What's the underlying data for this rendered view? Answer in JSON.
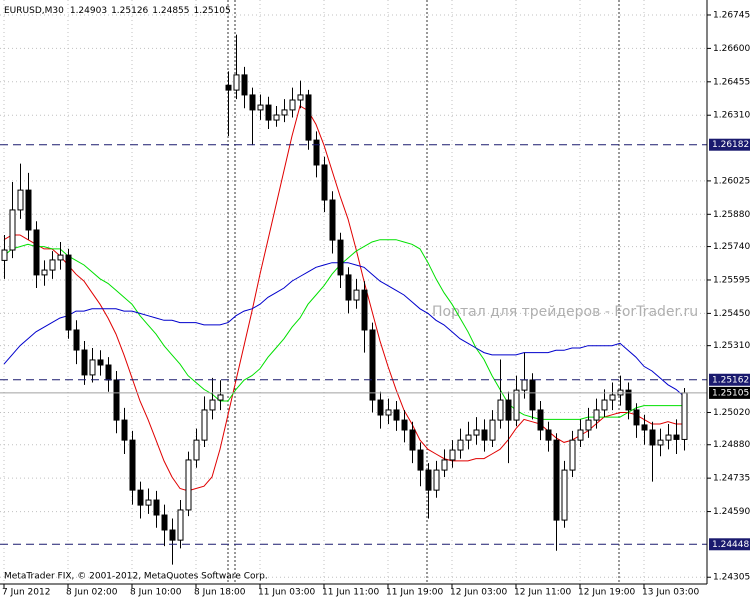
{
  "chart_data": {
    "type": "candlestick",
    "title": "EURUSD,M30",
    "watermark": "Портал для трейдеров - ForTrader.ru",
    "footer": "MetaTrader FIX, © 2001-2012, MetaQuotes Software Corp.",
    "candles": {
      "open": [
        1.2568,
        1.25725,
        1.25899,
        1.25985,
        1.25812,
        1.25617,
        1.25638,
        1.25682,
        1.25703,
        1.25378,
        1.25291,
        1.25183,
        1.25248,
        1.25226,
        1.25161,
        1.24987,
        1.249,
        1.24683,
        1.24618,
        1.2464,
        1.24575,
        1.2451,
        1.24466,
        1.24597,
        1.24814,
        1.249,
        1.25031,
        1.25074,
        1.2644,
        1.26419,
        1.26485,
        1.26398,
        1.26333,
        1.26354,
        1.26289,
        1.26311,
        1.26333,
        1.26376,
        1.26398,
        1.26202,
        1.26094,
        1.25942,
        1.25768,
        1.25617,
        1.25508,
        1.25551,
        1.25378,
        1.25074,
        1.25009,
        1.25031,
        1.24987,
        1.24944,
        1.24857,
        1.2477,
        1.24683,
        1.2477,
        1.24814,
        1.24857,
        1.249,
        1.24922,
        1.24944,
        1.249,
        1.24987,
        1.25074,
        1.24987,
        1.25117,
        1.25161,
        1.25031,
        1.24944,
        1.249,
        1.24553,
        1.2477,
        1.249,
        1.24944,
        1.24987,
        1.25031,
        1.25074,
        1.25096,
        1.25117,
        1.25031,
        1.24966,
        1.24944,
        1.24879,
        1.249,
        1.24922,
        1.24903
      ],
      "high": [
        1.2579,
        1.2602,
        1.261,
        1.2606,
        1.2585,
        1.2568,
        1.2572,
        1.2576,
        1.2573,
        1.2542,
        1.2533,
        1.253,
        1.2529,
        1.2526,
        1.252,
        1.2504,
        1.2494,
        1.2472,
        1.2469,
        1.2468,
        1.2462,
        1.2456,
        1.2464,
        1.2485,
        1.2495,
        1.2509,
        1.2517,
        1.2516,
        1.265,
        1.2666,
        1.2652,
        1.2643,
        1.264,
        1.2639,
        1.2635,
        1.2638,
        1.2643,
        1.2646,
        1.2642,
        1.2624,
        1.2613,
        1.2598,
        1.258,
        1.2565,
        1.256,
        1.2559,
        1.2541,
        1.2511,
        1.2508,
        1.2507,
        1.2503,
        1.2498,
        1.2489,
        1.248,
        1.2481,
        1.2486,
        1.249,
        1.2495,
        1.2498,
        1.25,
        1.2499,
        1.2503,
        1.2525,
        1.2511,
        1.2518,
        1.2528,
        1.2519,
        1.2507,
        1.2498,
        1.2493,
        1.2481,
        1.2494,
        1.2499,
        1.2504,
        1.2508,
        1.2512,
        1.2515,
        1.2518,
        1.2515,
        1.2506,
        1.2501,
        1.2498,
        1.2495,
        1.2497,
        1.2499,
        1.25126
      ],
      "low": [
        1.256,
        1.2569,
        1.2586,
        1.2577,
        1.2556,
        1.2557,
        1.256,
        1.2564,
        1.2534,
        1.2523,
        1.2514,
        1.2515,
        1.2518,
        1.2511,
        1.2493,
        1.2484,
        1.2462,
        1.2456,
        1.2458,
        1.2452,
        1.2444,
        1.2436,
        1.2443,
        1.2457,
        1.2478,
        1.2487,
        1.2499,
        1.2503,
        1.2622,
        1.2638,
        1.2634,
        1.2618,
        1.2629,
        1.2625,
        1.2626,
        1.2628,
        1.263,
        1.2634,
        1.2616,
        1.2604,
        1.2589,
        1.2571,
        1.2556,
        1.2545,
        1.2547,
        1.2528,
        1.2502,
        1.2495,
        1.2497,
        1.2494,
        1.2489,
        1.248,
        1.247,
        1.2456,
        1.2465,
        1.2474,
        1.2478,
        1.2482,
        1.2486,
        1.2488,
        1.2485,
        1.2487,
        1.2495,
        1.248,
        1.2496,
        1.2508,
        1.2499,
        1.249,
        1.2485,
        1.2442,
        1.2452,
        1.2474,
        1.2487,
        1.2491,
        1.2495,
        1.25,
        1.2503,
        1.2505,
        1.2499,
        1.2491,
        1.2488,
        1.2472,
        1.2483,
        1.2486,
        1.2484,
        1.24855
      ],
      "close": [
        1.25725,
        1.25899,
        1.25985,
        1.25812,
        1.25617,
        1.25638,
        1.25682,
        1.25703,
        1.25378,
        1.25291,
        1.25183,
        1.25248,
        1.25226,
        1.25161,
        1.24987,
        1.249,
        1.24683,
        1.24618,
        1.2464,
        1.24575,
        1.2451,
        1.24466,
        1.24597,
        1.24814,
        1.249,
        1.25031,
        1.25074,
        1.25096,
        1.26419,
        1.26485,
        1.26398,
        1.26333,
        1.26354,
        1.26289,
        1.26311,
        1.26333,
        1.26376,
        1.26398,
        1.26202,
        1.26094,
        1.25942,
        1.25768,
        1.25617,
        1.25508,
        1.25551,
        1.25378,
        1.25074,
        1.25009,
        1.25031,
        1.24987,
        1.24944,
        1.24857,
        1.2477,
        1.24683,
        1.2477,
        1.24814,
        1.24857,
        1.249,
        1.24922,
        1.24944,
        1.249,
        1.24987,
        1.25074,
        1.24987,
        1.25117,
        1.25161,
        1.25031,
        1.24944,
        1.249,
        1.24553,
        1.2477,
        1.249,
        1.24944,
        1.24987,
        1.25031,
        1.25074,
        1.25096,
        1.25117,
        1.25031,
        1.24966,
        1.24944,
        1.24879,
        1.249,
        1.24922,
        1.24903,
        1.25105
      ]
    },
    "series": [
      {
        "color": "#e00000",
        "values": [
          1.2577,
          1.2579,
          1.2579,
          1.2577,
          1.2575,
          1.2573,
          1.2573,
          1.257,
          1.2566,
          1.2562,
          1.2559,
          1.2554,
          1.2549,
          1.2543,
          1.2536,
          1.2527,
          1.2517,
          1.2507,
          1.2499,
          1.249,
          1.2481,
          1.2474,
          1.2469,
          1.2468,
          1.2469,
          1.247,
          1.2474,
          1.2486,
          1.2501,
          1.2516,
          1.2531,
          1.2546,
          1.2562,
          1.2577,
          1.2592,
          1.2607,
          1.2622,
          1.2635,
          1.2633,
          1.2627,
          1.2618,
          1.2607,
          1.2596,
          1.2586,
          1.2573,
          1.2559,
          1.2546,
          1.2533,
          1.2522,
          1.2512,
          1.2503,
          1.2497,
          1.249,
          1.2486,
          1.2484,
          1.2482,
          1.2481,
          1.2481,
          1.2481,
          1.2482,
          1.2482,
          1.2484,
          1.2486,
          1.249,
          1.2495,
          1.2499,
          1.2498,
          1.2497,
          1.2494,
          1.2491,
          1.2489,
          1.249,
          1.2492,
          1.2494,
          1.2497,
          1.25,
          1.2501,
          1.2502,
          1.2502,
          1.2501,
          1.2499,
          1.2497,
          1.2497,
          1.2498,
          1.2497,
          1.2497
        ]
      },
      {
        "color": "#00e000",
        "values": [
          1.257,
          1.2573,
          1.2574,
          1.2575,
          1.2574,
          1.2574,
          1.2573,
          1.2573,
          1.257,
          1.2568,
          1.2566,
          1.2563,
          1.256,
          1.2558,
          1.2555,
          1.2552,
          1.2549,
          1.2544,
          1.254,
          1.2536,
          1.2531,
          1.2527,
          1.2523,
          1.2518,
          1.2515,
          1.2512,
          1.251,
          1.2507,
          1.2507,
          1.2512,
          1.2516,
          1.2518,
          1.2521,
          1.2526,
          1.253,
          1.2534,
          1.2539,
          1.2543,
          1.2549,
          1.2553,
          1.2557,
          1.2562,
          1.2566,
          1.2569,
          1.2572,
          1.2574,
          1.2576,
          1.2577,
          1.2577,
          1.2577,
          1.2576,
          1.2575,
          1.2573,
          1.2567,
          1.256,
          1.2554,
          1.2549,
          1.2543,
          1.2537,
          1.253,
          1.2525,
          1.2518,
          1.2512,
          1.2506,
          1.2503,
          1.2501,
          1.25,
          1.2499,
          1.2499,
          1.2499,
          1.2499,
          1.2499,
          1.2499,
          1.25,
          1.25,
          1.25,
          1.25,
          1.25,
          1.2502,
          1.2504,
          1.2505,
          1.2505,
          1.2505,
          1.2505,
          1.2505,
          1.2505
        ]
      },
      {
        "color": "#0000cc",
        "values": [
          1.2523,
          1.2527,
          1.2531,
          1.2534,
          1.2537,
          1.2539,
          1.2541,
          1.2543,
          1.2544,
          1.2546,
          1.2546,
          1.2547,
          1.2547,
          1.2547,
          1.2547,
          1.2546,
          1.2546,
          1.2545,
          1.2544,
          1.2543,
          1.2542,
          1.2542,
          1.2541,
          1.2541,
          1.2541,
          1.254,
          1.254,
          1.254,
          1.2541,
          1.2544,
          1.2546,
          1.2547,
          1.2549,
          1.2552,
          1.2554,
          1.2556,
          1.2559,
          1.2561,
          1.2563,
          1.2565,
          1.2566,
          1.2567,
          1.2567,
          1.2567,
          1.2566,
          1.2565,
          1.2562,
          1.2559,
          1.2557,
          1.2555,
          1.2553,
          1.255,
          1.2547,
          1.2545,
          1.2542,
          1.254,
          1.2537,
          1.2534,
          1.2532,
          1.253,
          1.2528,
          1.2527,
          1.2527,
          1.2527,
          1.2527,
          1.2528,
          1.2528,
          1.2528,
          1.2528,
          1.2529,
          1.2529,
          1.253,
          1.253,
          1.2531,
          1.2531,
          1.2531,
          1.2531,
          1.2532,
          1.2529,
          1.2526,
          1.2522,
          1.252,
          1.2517,
          1.2514,
          1.2512,
          1.2509
        ]
      }
    ],
    "hlines": [
      1.26182,
      1.25162,
      1.24448
    ],
    "ylim": [
      1.2428,
      1.2681
    ],
    "yticks": [
      1.26745,
      {
        "value": 1.266,
        "label": "1.26600"
      },
      1.26455,
      {
        "value": 1.2631,
        "label": "1.26310"
      },
      1.26025,
      {
        "value": 1.2588,
        "label": "1.25880"
      },
      {
        "value": 1.2574,
        "label": "1.25740"
      },
      1.25595,
      {
        "value": 1.2545,
        "label": "1.25450"
      },
      {
        "value": 1.2531,
        "label": "1.25310"
      },
      {
        "value": 1.2502,
        "label": "1.25020"
      },
      {
        "value": 1.2488,
        "label": "1.24880"
      },
      1.24735,
      {
        "value": 1.2459,
        "label": "1.24590"
      },
      1.24305
    ],
    "xticks": [
      {
        "value": 0,
        "label": "7 Jun 2012"
      },
      {
        "value": 8,
        "label": "8 Jun 02:00"
      },
      {
        "value": 16,
        "label": "8 Jun 10:00"
      },
      {
        "value": 24,
        "label": "8 Jun 18:00"
      },
      {
        "value": 32,
        "label": "11 Jun 03:00"
      },
      {
        "value": 40,
        "label": "11 Jun 11:00"
      },
      {
        "value": 48,
        "label": "11 Jun 19:00"
      },
      {
        "value": 56,
        "label": "12 Jun 03:00"
      },
      {
        "value": 64,
        "label": "12 Jun 11:00"
      },
      {
        "value": 72,
        "label": "12 Jun 19:00"
      },
      {
        "value": 80,
        "label": "13 Jun 03:00"
      }
    ],
    "grid": true
  }
}
